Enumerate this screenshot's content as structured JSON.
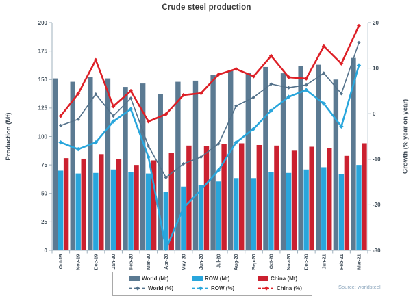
{
  "title": "Crude steel production",
  "source": "Source: worldsteel",
  "axes": {
    "left_title": "Production (Mt)",
    "right_title": "Growth (% year on year)"
  },
  "colors": {
    "world_bar": "#5b7a92",
    "row_bar": "#29a6dc",
    "china_bar": "#cb2130",
    "world_line": "#53718a",
    "row_line": "#29a6dc",
    "china_line": "#dd1f26",
    "axis_line": "#9fb0bc",
    "tick_text": "#44515c",
    "title_text": "#3b3b3b",
    "source_text": "#8ca6bd"
  },
  "chart_data": {
    "type": "combo bar+line",
    "title": "Crude steel production",
    "categories": [
      "Oct-19",
      "Nov-19",
      "Dec-19",
      "Jan-20",
      "Feb-20",
      "Mar-20",
      "Apr-20",
      "May-20",
      "Jun-20",
      "Jul-20",
      "Aug-20",
      "Sep-20",
      "Oct-20",
      "Nov-20",
      "Dec-20",
      "Jan-21",
      "Feb-21",
      "Mar-21"
    ],
    "bar_series": [
      {
        "name": "World (Mt)",
        "axis": "left",
        "color": "#5b7a92",
        "values": [
          151,
          148,
          152,
          151,
          143.5,
          146.5,
          137,
          148,
          149,
          154,
          157.5,
          156,
          161,
          155.5,
          162,
          163,
          150,
          169
        ]
      },
      {
        "name": "ROW (Mt)",
        "axis": "left",
        "color": "#29a6dc",
        "values": [
          70,
          67.5,
          68,
          71,
          68.5,
          67.5,
          51.5,
          56,
          57.5,
          60.5,
          63.5,
          63.5,
          69,
          68,
          71,
          73,
          67,
          75
        ]
      },
      {
        "name": "China (Mt)",
        "axis": "left",
        "color": "#cb2130",
        "values": [
          81,
          80.5,
          84.5,
          80,
          75,
          79,
          85.5,
          92,
          91.5,
          93.5,
          94,
          92.5,
          92,
          87.5,
          91,
          90,
          83,
          94
        ]
      }
    ],
    "line_series": [
      {
        "name": "World (%)",
        "axis": "right",
        "color": "#53718a",
        "width": 1.6,
        "marker": 2.6,
        "values": [
          -2.6,
          -1.2,
          4.3,
          -0.5,
          3.4,
          -7.1,
          -14.0,
          -11.0,
          -9.5,
          -6.6,
          1.7,
          3.6,
          6.5,
          5.7,
          6.3,
          8.9,
          4.4,
          15.6
        ]
      },
      {
        "name": "ROW (%)",
        "axis": "right",
        "color": "#29a6dc",
        "width": 2.6,
        "marker": 3.2,
        "values": [
          -6.3,
          -7.8,
          -6.3,
          -1.7,
          1.0,
          -9.5,
          -29.7,
          -20.7,
          -16.7,
          -12.4,
          -6.3,
          -3.3,
          0.7,
          3.7,
          5.2,
          2.2,
          -2.8,
          10.6
        ]
      },
      {
        "name": "China (%)",
        "axis": "right",
        "color": "#dd1f26",
        "width": 2.6,
        "marker": 3.0,
        "values": [
          -0.5,
          4.4,
          11.8,
          1.6,
          5.0,
          -1.7,
          -0.1,
          4.1,
          4.5,
          8.6,
          9.8,
          8.2,
          12.7,
          8.0,
          7.7,
          14.8,
          11.0,
          19.3
        ]
      }
    ],
    "left_axis": {
      "title": "Production (Mt)",
      "min": 0,
      "max": 200,
      "ticks": [
        200,
        175,
        150,
        125,
        100,
        75,
        50,
        25,
        0
      ]
    },
    "right_axis": {
      "title": "Growth (% year on year)",
      "min": -30,
      "max": 20,
      "ticks": [
        20,
        10,
        0,
        -10,
        -20,
        -30
      ]
    },
    "grid": false,
    "legend_position": "bottom"
  },
  "legend": {
    "items": [
      {
        "label": "World (Mt)",
        "type": "bar",
        "color": "#5b7a92"
      },
      {
        "label": "ROW (Mt)",
        "type": "bar",
        "color": "#29a6dc"
      },
      {
        "label": "China (Mt)",
        "type": "bar",
        "color": "#cb2130"
      },
      {
        "label": "World (%)",
        "type": "line",
        "color": "#53718a"
      },
      {
        "label": "ROW (%)",
        "type": "line",
        "color": "#29a6dc"
      },
      {
        "label": "China (%)",
        "type": "line",
        "color": "#dd1f26"
      }
    ]
  }
}
